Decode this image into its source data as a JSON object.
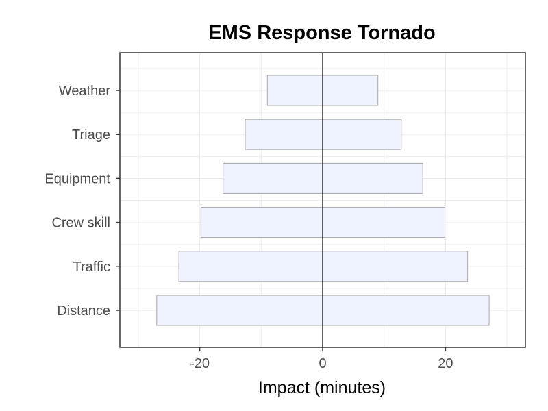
{
  "chart_data": {
    "type": "bar",
    "orientation": "horizontal",
    "title": "EMS Response Tornado",
    "xlabel": "Impact (minutes)",
    "ylabel": "",
    "xlim": [
      -33,
      33
    ],
    "x_ticks": [
      -20,
      0,
      20
    ],
    "x_tick_labels": [
      "-20",
      "0",
      "20"
    ],
    "grid": true,
    "legend": "none",
    "categories": [
      "Weather",
      "Triage",
      "Equipment",
      "Crew skill",
      "Traffic",
      "Distance"
    ],
    "bars": [
      {
        "category": "Weather",
        "low": -9,
        "high": 9
      },
      {
        "category": "Triage",
        "low": -12.6,
        "high": 12.8
      },
      {
        "category": "Equipment",
        "low": -16.2,
        "high": 16.3
      },
      {
        "category": "Crew skill",
        "low": -19.8,
        "high": 19.9
      },
      {
        "category": "Traffic",
        "low": -23.4,
        "high": 23.6
      },
      {
        "category": "Distance",
        "low": -27,
        "high": 27.1
      }
    ],
    "colors": {
      "bar_fill": "#eef3ff",
      "bar_stroke": "#a6a6a6",
      "panel_border": "#333333",
      "grid": "#ebebeb",
      "zero_line": "#333333"
    }
  }
}
